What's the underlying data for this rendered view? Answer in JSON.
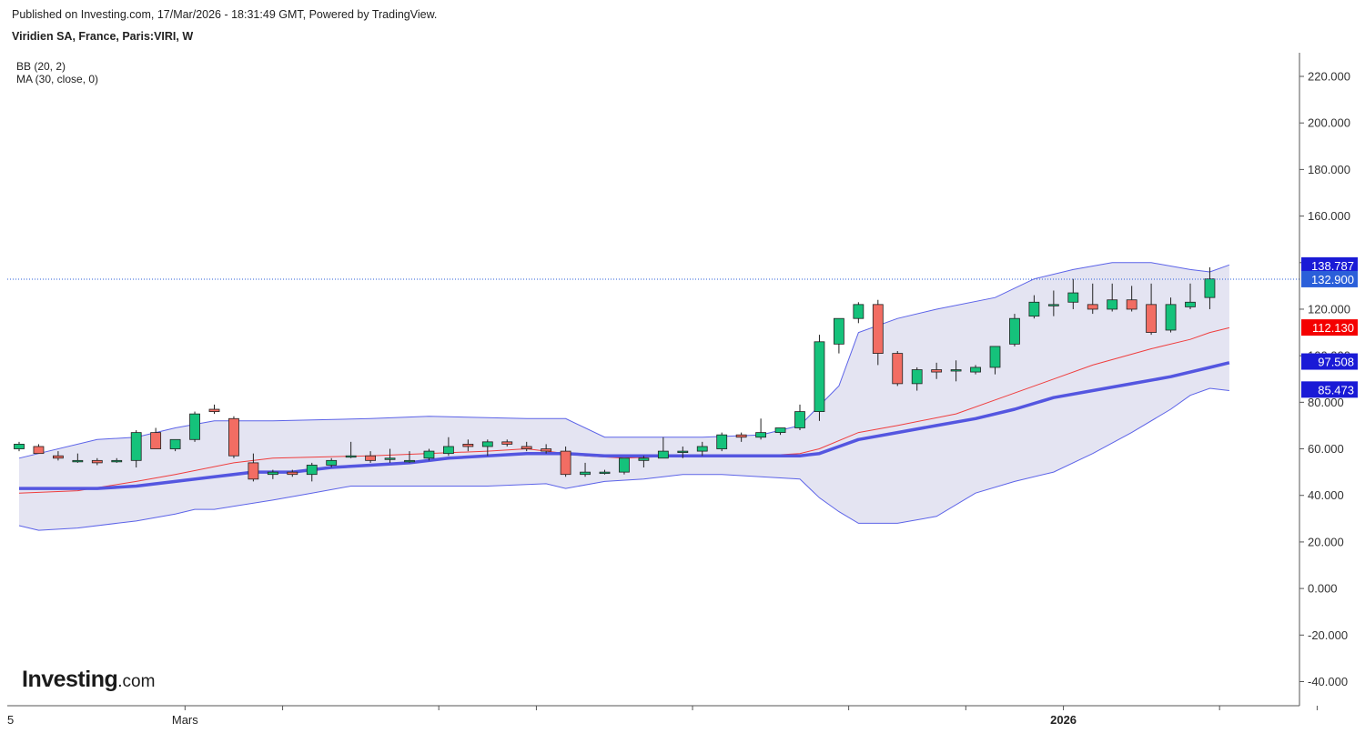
{
  "header": {
    "published": "Published on Investing.com, 17/Mar/2026 - 18:31:49 GMT, Powered by TradingView.",
    "symbol": "Viridien SA, France, Paris:VIRI, W"
  },
  "indicators": {
    "bb": "BB (20, 2)",
    "ma": "MA (30, close, 0)"
  },
  "logo": {
    "main": "Investing",
    "suffix": ".com"
  },
  "colors": {
    "up": "#15c27b",
    "down": "#f26d63",
    "band_fill": "#e4e4f2",
    "band_line": "#5c63e8",
    "ma_line": "#5456e0",
    "bb_mid": "#ef3e3e",
    "price_line": "#2b5fd9"
  },
  "chart_data": {
    "type": "candlestick",
    "y_axis": {
      "min": -46,
      "max": 220,
      "ticks": [
        "220.000",
        "200.000",
        "180.000",
        "160.000",
        "140.000",
        "120.000",
        "100.000",
        "80.000",
        "60.000",
        "40.000",
        "20.000",
        "0.000",
        "-20.000",
        "-40.000"
      ],
      "tick_values": [
        220,
        200,
        180,
        160,
        140,
        120,
        100,
        80,
        60,
        40,
        20,
        0,
        -20,
        -40
      ]
    },
    "x_labels": [
      {
        "index": 0,
        "text": "5"
      },
      {
        "index": 8,
        "text": "Mars"
      },
      {
        "index": 53,
        "text": "2026"
      }
    ],
    "x_ticks": [
      8,
      13,
      21,
      26,
      34,
      42,
      48,
      53,
      61,
      66
    ],
    "candles": [
      {
        "o": 60,
        "h": 63,
        "l": 59,
        "c": 62
      },
      {
        "o": 61,
        "h": 62,
        "l": 58,
        "c": 58
      },
      {
        "o": 57,
        "h": 59,
        "l": 55,
        "c": 56
      },
      {
        "o": 55,
        "h": 58,
        "l": 54,
        "c": 55
      },
      {
        "o": 55,
        "h": 56,
        "l": 53,
        "c": 54
      },
      {
        "o": 55,
        "h": 56,
        "l": 54,
        "c": 55
      },
      {
        "o": 55,
        "h": 68,
        "l": 52,
        "c": 67
      },
      {
        "o": 67,
        "h": 69,
        "l": 60,
        "c": 60
      },
      {
        "o": 60,
        "h": 64,
        "l": 59,
        "c": 64
      },
      {
        "o": 64,
        "h": 76,
        "l": 63,
        "c": 75
      },
      {
        "o": 77,
        "h": 79,
        "l": 75,
        "c": 76
      },
      {
        "o": 73,
        "h": 74,
        "l": 56,
        "c": 57
      },
      {
        "o": 54,
        "h": 58,
        "l": 46,
        "c": 47
      },
      {
        "o": 49,
        "h": 51,
        "l": 47,
        "c": 50
      },
      {
        "o": 50,
        "h": 51,
        "l": 48,
        "c": 49
      },
      {
        "o": 49,
        "h": 54,
        "l": 46,
        "c": 53
      },
      {
        "o": 53,
        "h": 56,
        "l": 52,
        "c": 55
      },
      {
        "o": 57,
        "h": 63,
        "l": 56,
        "c": 57
      },
      {
        "o": 57,
        "h": 59,
        "l": 54,
        "c": 55
      },
      {
        "o": 56,
        "h": 60,
        "l": 54,
        "c": 56
      },
      {
        "o": 55,
        "h": 59,
        "l": 54,
        "c": 55
      },
      {
        "o": 56,
        "h": 60,
        "l": 55,
        "c": 59
      },
      {
        "o": 58,
        "h": 65,
        "l": 57,
        "c": 61
      },
      {
        "o": 62,
        "h": 64,
        "l": 59,
        "c": 61
      },
      {
        "o": 61,
        "h": 64,
        "l": 57,
        "c": 63
      },
      {
        "o": 63,
        "h": 64,
        "l": 61,
        "c": 62
      },
      {
        "o": 61,
        "h": 63,
        "l": 59,
        "c": 60
      },
      {
        "o": 60,
        "h": 62,
        "l": 58,
        "c": 59
      },
      {
        "o": 59,
        "h": 61,
        "l": 48,
        "c": 49
      },
      {
        "o": 49,
        "h": 54,
        "l": 48,
        "c": 50
      },
      {
        "o": 50,
        "h": 51,
        "l": 49,
        "c": 50
      },
      {
        "o": 50,
        "h": 56,
        "l": 49,
        "c": 56
      },
      {
        "o": 55,
        "h": 57,
        "l": 52,
        "c": 56
      },
      {
        "o": 56,
        "h": 65,
        "l": 56,
        "c": 59
      },
      {
        "o": 59,
        "h": 61,
        "l": 56,
        "c": 59
      },
      {
        "o": 59,
        "h": 63,
        "l": 57,
        "c": 61
      },
      {
        "o": 60,
        "h": 67,
        "l": 59,
        "c": 66
      },
      {
        "o": 66,
        "h": 67,
        "l": 63,
        "c": 65
      },
      {
        "o": 65,
        "h": 73,
        "l": 64,
        "c": 67
      },
      {
        "o": 67,
        "h": 69,
        "l": 66,
        "c": 69
      },
      {
        "o": 69,
        "h": 79,
        "l": 68,
        "c": 76
      },
      {
        "o": 76,
        "h": 109,
        "l": 72,
        "c": 106
      },
      {
        "o": 105,
        "h": 116,
        "l": 101,
        "c": 116
      },
      {
        "o": 116,
        "h": 123,
        "l": 114,
        "c": 122
      },
      {
        "o": 122,
        "h": 124,
        "l": 96,
        "c": 101
      },
      {
        "o": 101,
        "h": 102,
        "l": 87,
        "c": 88
      },
      {
        "o": 88,
        "h": 95,
        "l": 85,
        "c": 94
      },
      {
        "o": 94,
        "h": 97,
        "l": 90,
        "c": 93
      },
      {
        "o": 94,
        "h": 98,
        "l": 89,
        "c": 94
      },
      {
        "o": 93,
        "h": 96,
        "l": 92,
        "c": 95
      },
      {
        "o": 95,
        "h": 104,
        "l": 92,
        "c": 104
      },
      {
        "o": 105,
        "h": 118,
        "l": 104,
        "c": 116
      },
      {
        "o": 117,
        "h": 126,
        "l": 116,
        "c": 123
      },
      {
        "o": 122,
        "h": 128,
        "l": 117,
        "c": 122
      },
      {
        "o": 123,
        "h": 133,
        "l": 120,
        "c": 127
      },
      {
        "o": 122,
        "h": 131,
        "l": 118,
        "c": 120
      },
      {
        "o": 120,
        "h": 131,
        "l": 119,
        "c": 124
      },
      {
        "o": 124,
        "h": 130,
        "l": 119,
        "c": 120
      },
      {
        "o": 122,
        "h": 131,
        "l": 109,
        "c": 110
      },
      {
        "o": 111,
        "h": 125,
        "l": 110,
        "c": 122
      },
      {
        "o": 121,
        "h": 131,
        "l": 120,
        "c": 123
      },
      {
        "o": 125,
        "h": 138,
        "l": 120,
        "c": 133
      }
    ],
    "bb_upper": [
      [
        0,
        56
      ],
      [
        4,
        64
      ],
      [
        6,
        65
      ],
      [
        8,
        69
      ],
      [
        10,
        72
      ],
      [
        13,
        72
      ],
      [
        18,
        73
      ],
      [
        21,
        74
      ],
      [
        26,
        73
      ],
      [
        28,
        73
      ],
      [
        30,
        65
      ],
      [
        33,
        65
      ],
      [
        35,
        65
      ],
      [
        38,
        66
      ],
      [
        40,
        70
      ],
      [
        42,
        87
      ],
      [
        43,
        110
      ],
      [
        45,
        116
      ],
      [
        47,
        120
      ],
      [
        50,
        125
      ],
      [
        52,
        133
      ],
      [
        54,
        137
      ],
      [
        56,
        140
      ],
      [
        58,
        140
      ],
      [
        60,
        137
      ],
      [
        61,
        136
      ],
      [
        62,
        139
      ]
    ],
    "bb_middle": [
      [
        0,
        41
      ],
      [
        3,
        42
      ],
      [
        6,
        46
      ],
      [
        8,
        49
      ],
      [
        11,
        54
      ],
      [
        13,
        56
      ],
      [
        18,
        57
      ],
      [
        24,
        59
      ],
      [
        26,
        60
      ],
      [
        29,
        57
      ],
      [
        31,
        56
      ],
      [
        34,
        57
      ],
      [
        38,
        57
      ],
      [
        40,
        58
      ],
      [
        41,
        60
      ],
      [
        43,
        67
      ],
      [
        45,
        70
      ],
      [
        48,
        75
      ],
      [
        50,
        81
      ],
      [
        53,
        90
      ],
      [
        55,
        96
      ],
      [
        58,
        103
      ],
      [
        60,
        107
      ],
      [
        61,
        110
      ],
      [
        62,
        112
      ]
    ],
    "bb_lower": [
      [
        0,
        27
      ],
      [
        1,
        25
      ],
      [
        3,
        26
      ],
      [
        5,
        28
      ],
      [
        6,
        29
      ],
      [
        8,
        32
      ],
      [
        9,
        34
      ],
      [
        10,
        34
      ],
      [
        13,
        38
      ],
      [
        15,
        41
      ],
      [
        17,
        44
      ],
      [
        20,
        44
      ],
      [
        24,
        44
      ],
      [
        27,
        45
      ],
      [
        28,
        43
      ],
      [
        30,
        46
      ],
      [
        32,
        47
      ],
      [
        34,
        49
      ],
      [
        36,
        49
      ],
      [
        38,
        48
      ],
      [
        40,
        47
      ],
      [
        41,
        39
      ],
      [
        42,
        33
      ],
      [
        43,
        28
      ],
      [
        45,
        28
      ],
      [
        47,
        31
      ],
      [
        49,
        41
      ],
      [
        51,
        46
      ],
      [
        53,
        50
      ],
      [
        55,
        58
      ],
      [
        57,
        67
      ],
      [
        59,
        77
      ],
      [
        60,
        83
      ],
      [
        61,
        86
      ],
      [
        62,
        85
      ]
    ],
    "ma30": [
      [
        0,
        43
      ],
      [
        4,
        43
      ],
      [
        6,
        44
      ],
      [
        8,
        46
      ],
      [
        10,
        48
      ],
      [
        12,
        50
      ],
      [
        14,
        50
      ],
      [
        16,
        52
      ],
      [
        18,
        53
      ],
      [
        20,
        54
      ],
      [
        22,
        56
      ],
      [
        24,
        57
      ],
      [
        26,
        58
      ],
      [
        28,
        58
      ],
      [
        30,
        57
      ],
      [
        32,
        57
      ],
      [
        34,
        57
      ],
      [
        36,
        57
      ],
      [
        38,
        57
      ],
      [
        40,
        57
      ],
      [
        41,
        58
      ],
      [
        42,
        61
      ],
      [
        43,
        64
      ],
      [
        45,
        67
      ],
      [
        47,
        70
      ],
      [
        49,
        73
      ],
      [
        51,
        77
      ],
      [
        53,
        82
      ],
      [
        55,
        85
      ],
      [
        57,
        88
      ],
      [
        59,
        91
      ],
      [
        61,
        95
      ],
      [
        62,
        97
      ]
    ],
    "price_labels": [
      {
        "text": "138.787",
        "value": 138.787,
        "color": "#1a1ad6"
      },
      {
        "text": "132.900",
        "value": 132.9,
        "color": "#2b5fd9"
      },
      {
        "text": "112.130",
        "value": 112.13,
        "color": "#f40000"
      },
      {
        "text": "97.508",
        "value": 97.508,
        "color": "#1a1ad6"
      },
      {
        "text": "85.473",
        "value": 85.473,
        "color": "#1a1ad6"
      }
    ],
    "last_price": 132.9
  }
}
